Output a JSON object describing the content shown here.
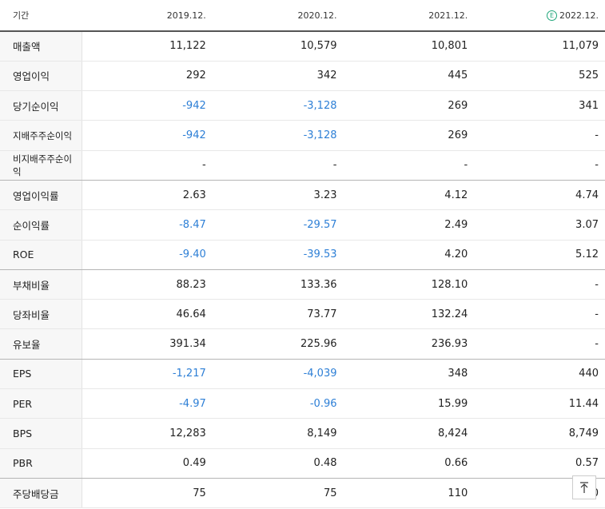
{
  "header": {
    "label": "기간",
    "years": [
      "2019.12.",
      "2020.12.",
      "2021.12.",
      "2022.12."
    ],
    "estimate_badge": "E"
  },
  "rows": [
    {
      "label": "매출액",
      "values": [
        "11,122",
        "10,579",
        "10,801",
        "11,079"
      ]
    },
    {
      "label": "영업이익",
      "values": [
        "292",
        "342",
        "445",
        "525"
      ]
    },
    {
      "label": "당기순이익",
      "values": [
        "-942",
        "-3,128",
        "269",
        "341"
      ]
    },
    {
      "label": "지배주주순이익",
      "values": [
        "-942",
        "-3,128",
        "269",
        "-"
      ]
    },
    {
      "label": "비지배주주순이익",
      "values": [
        "-",
        "-",
        "-",
        "-"
      ]
    },
    {
      "label": "영업이익률",
      "values": [
        "2.63",
        "3.23",
        "4.12",
        "4.74"
      ]
    },
    {
      "label": "순이익률",
      "values": [
        "-8.47",
        "-29.57",
        "2.49",
        "3.07"
      ]
    },
    {
      "label": "ROE",
      "values": [
        "-9.40",
        "-39.53",
        "4.20",
        "5.12"
      ]
    },
    {
      "label": "부채비율",
      "values": [
        "88.23",
        "133.36",
        "128.10",
        "-"
      ]
    },
    {
      "label": "당좌비율",
      "values": [
        "46.64",
        "73.77",
        "132.24",
        "-"
      ]
    },
    {
      "label": "유보율",
      "values": [
        "391.34",
        "225.96",
        "236.93",
        "-"
      ]
    },
    {
      "label": "EPS",
      "values": [
        "-1,217",
        "-4,039",
        "348",
        "440"
      ]
    },
    {
      "label": "PER",
      "values": [
        "-4.97",
        "-0.96",
        "15.99",
        "11.44"
      ]
    },
    {
      "label": "BPS",
      "values": [
        "12,283",
        "8,149",
        "8,424",
        "8,749"
      ]
    },
    {
      "label": "PBR",
      "values": [
        "0.49",
        "0.48",
        "0.66",
        "0.57"
      ]
    },
    {
      "label": "주당배당금",
      "values": [
        "75",
        "75",
        "110",
        "0"
      ]
    }
  ],
  "scroll_top_icon": "arrow-up-to-top-icon"
}
